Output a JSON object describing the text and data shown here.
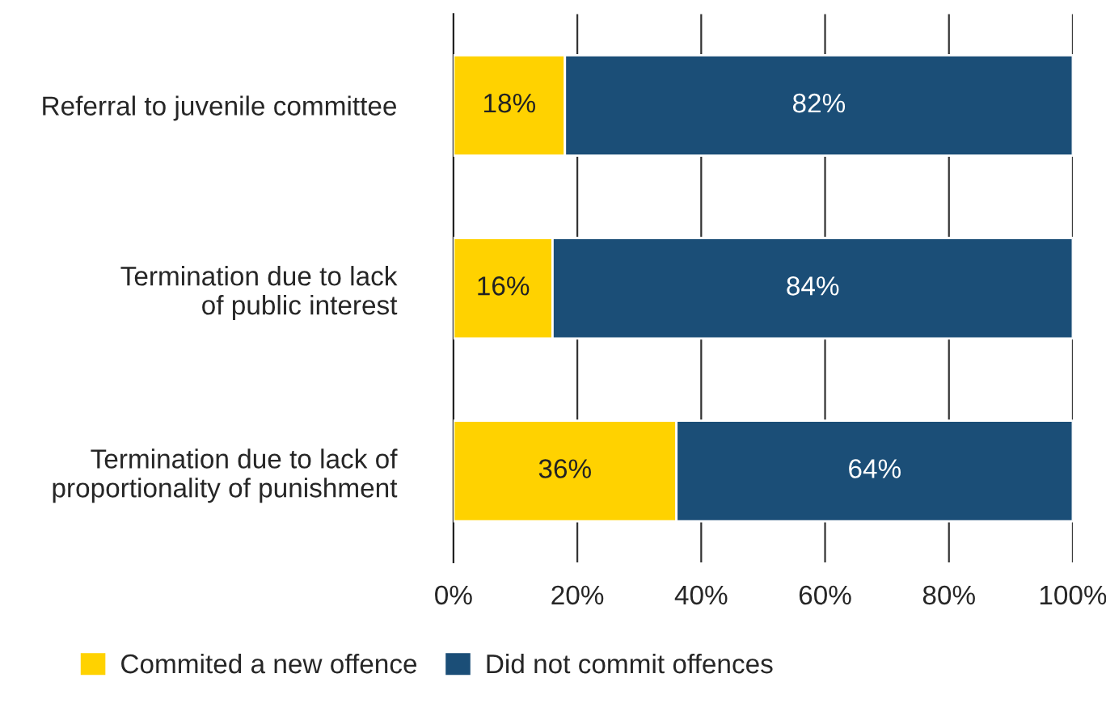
{
  "chart_data": {
    "type": "bar",
    "orientation": "horizontal",
    "stacked": true,
    "categories": [
      "Referral to juvenile committee",
      "Termination due to lack\nof public interest",
      "Termination due to lack of\nproportionality of punishment"
    ],
    "series": [
      {
        "name": "Commited a new offence",
        "color": "#ffd200",
        "values": [
          18,
          16,
          36
        ],
        "value_labels": [
          "18%",
          "16%",
          "36%"
        ]
      },
      {
        "name": "Did not commit offences",
        "color": "#1b4e77",
        "values": [
          82,
          84,
          64
        ],
        "value_labels": [
          "82%",
          "84%",
          "64%"
        ]
      }
    ],
    "xlim": [
      0,
      100
    ],
    "xticks": [
      {
        "value": 0,
        "label": "0%"
      },
      {
        "value": 20,
        "label": "20%"
      },
      {
        "value": 40,
        "label": "40%"
      },
      {
        "value": 60,
        "label": "60%"
      },
      {
        "value": 80,
        "label": "80%"
      },
      {
        "value": 100,
        "label": "100%"
      }
    ],
    "grid": "x",
    "legend": "bottom"
  }
}
